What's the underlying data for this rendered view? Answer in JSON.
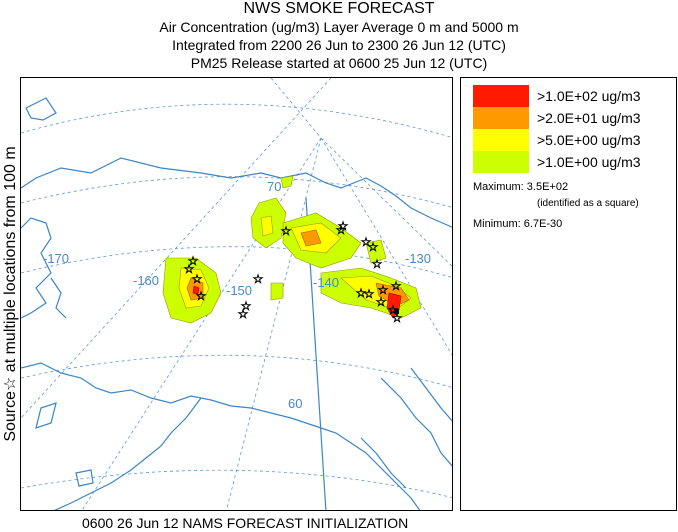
{
  "header": {
    "title": "NWS SMOKE FORECAST",
    "line2": "Air Concentration (ug/m3) Layer Average    0 m and  5000 m",
    "line3": "Integrated from 2200 26 Jun to 2300 26 Jun 12 (UTC)",
    "line4": "PM25 Release started at 0600 25 Jun 12 (UTC)"
  },
  "side_label": "Source☆ at multiple locations  from   100 m",
  "map": {
    "graticule_labels": {
      "lon_170": "-170",
      "lon_160": "-160",
      "lon_150": "-150",
      "lon_140": "-140",
      "lon_130": "-130",
      "lat_70": "70",
      "lat_60": "60"
    },
    "colors": {
      "coast": "#3a86c8",
      "graticule": "#5a9ad6",
      "red": "#ff1a00",
      "orange": "#ff9900",
      "yellow": "#ffff00",
      "lime": "#ccff00"
    }
  },
  "legend": {
    "items": [
      {
        "label": ">1.0E+02 ug/m3",
        "color": "#ff1a00"
      },
      {
        "label": ">2.0E+01 ug/m3",
        "color": "#ff9900"
      },
      {
        "label": ">5.0E+00 ug/m3",
        "color": "#ffff00"
      },
      {
        "label": ">1.0E+00 ug/m3",
        "color": "#ccff00"
      }
    ],
    "maximum": "Maximum: 3.5E+02",
    "maximum_note": "(identified as a square)",
    "minimum": "Minimum: 6.7E-30"
  },
  "footer": "0600 26 Jun 12 NAMS FORECAST INITIALIZATION"
}
